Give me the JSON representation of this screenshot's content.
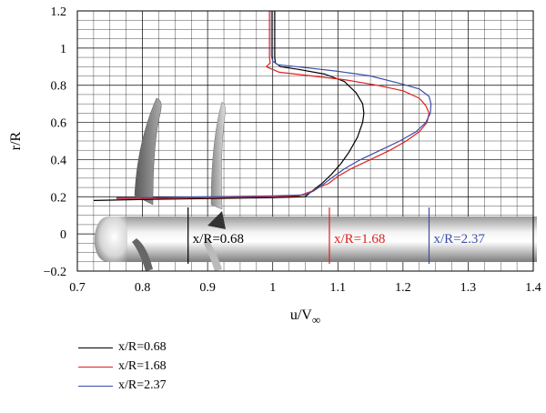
{
  "chart_data": {
    "type": "line",
    "xlabel": "u/V",
    "xlabel_sub": "∞",
    "ylabel": "r/R",
    "xlim": [
      0.7,
      1.4
    ],
    "ylim": [
      -0.2,
      1.2
    ],
    "x_ticks": [
      "0.7",
      "0.8",
      "0.9",
      "1",
      "1.1",
      "1.2",
      "1.3",
      "1.4"
    ],
    "y_ticks": [
      "−0.2",
      "0",
      "0.2",
      "0.4",
      "0.6",
      "0.8",
      "1",
      "1.2"
    ],
    "grid": true,
    "legend_position": "below",
    "series": [
      {
        "name": "x/R=0.68",
        "color": "#000000",
        "x": [
          1.003,
          1.003,
          1.003,
          1.003,
          1.004,
          1.012,
          1.04,
          1.08,
          1.11,
          1.128,
          1.138,
          1.14,
          1.138,
          1.13,
          1.117,
          1.105,
          1.09,
          1.075,
          1.062,
          1.055,
          1.05,
          1.0,
          0.9,
          0.8,
          0.725
        ],
        "y": [
          1.2,
          1.1,
          1.0,
          0.95,
          0.92,
          0.9,
          0.885,
          0.86,
          0.82,
          0.76,
          0.7,
          0.65,
          0.6,
          0.52,
          0.44,
          0.38,
          0.32,
          0.27,
          0.235,
          0.215,
          0.2,
          0.195,
          0.19,
          0.185,
          0.18
        ]
      },
      {
        "name": "x/R=1.68",
        "color": "#e02020",
        "x": [
          0.995,
          0.995,
          0.995,
          0.995,
          0.996,
          0.99,
          1.01,
          1.06,
          1.11,
          1.16,
          1.2,
          1.225,
          1.235,
          1.24,
          1.237,
          1.225,
          1.205,
          1.18,
          1.15,
          1.12,
          1.1,
          1.085,
          1.07,
          1.06,
          1.04,
          1.0,
          0.9,
          0.8,
          0.76
        ],
        "y": [
          1.2,
          1.1,
          1.0,
          0.95,
          0.92,
          0.9,
          0.87,
          0.85,
          0.83,
          0.8,
          0.77,
          0.73,
          0.69,
          0.65,
          0.6,
          0.55,
          0.5,
          0.45,
          0.4,
          0.35,
          0.31,
          0.27,
          0.25,
          0.23,
          0.205,
          0.2,
          0.195,
          0.19,
          0.19
        ]
      },
      {
        "name": "x/R=2.37",
        "color": "#3b4ea8",
        "x": [
          0.998,
          0.998,
          0.998,
          0.998,
          1.0,
          1.008,
          1.05,
          1.1,
          1.15,
          1.195,
          1.225,
          1.24,
          1.243,
          1.242,
          1.235,
          1.22,
          1.195,
          1.165,
          1.135,
          1.11,
          1.09,
          1.075,
          1.062,
          1.05,
          1.0,
          0.9,
          0.8,
          0.76
        ],
        "y": [
          1.2,
          1.1,
          1.0,
          0.96,
          0.93,
          0.91,
          0.895,
          0.875,
          0.85,
          0.81,
          0.78,
          0.74,
          0.7,
          0.65,
          0.6,
          0.55,
          0.5,
          0.45,
          0.4,
          0.35,
          0.3,
          0.26,
          0.23,
          0.21,
          0.205,
          0.2,
          0.195,
          0.195
        ]
      }
    ],
    "annotations": [
      {
        "text": "x/R=0.68",
        "x_data": 0.87,
        "color": "#000000"
      },
      {
        "text": "x/R=1.68",
        "x_data": 1.087,
        "color": "#e02020"
      },
      {
        "text": "x/R=2.37",
        "x_data": 1.24,
        "color": "#3b4ea8"
      }
    ]
  }
}
